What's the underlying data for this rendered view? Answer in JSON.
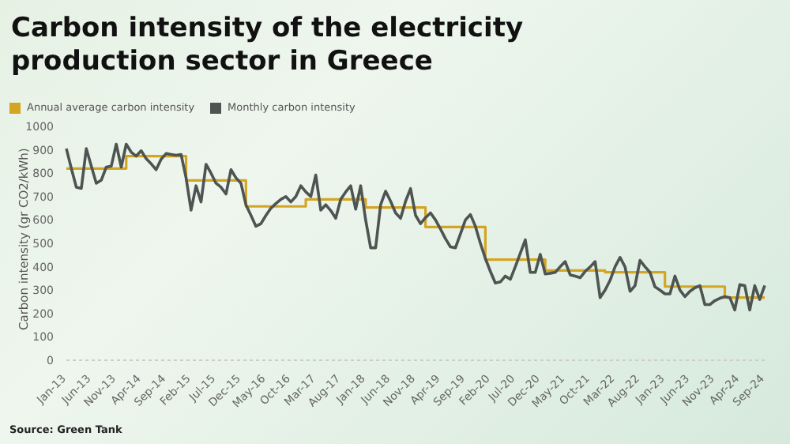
{
  "chart_data": {
    "type": "line",
    "title": "Carbon intensity of the electricity production sector in Greece",
    "ylabel": "Carbon intensity (gr CO2/kWh)",
    "annotations": [
      "Source: Green Tank"
    ],
    "categories": [
      "Jan-13",
      null,
      null,
      null,
      null,
      "Jun-13",
      null,
      null,
      null,
      null,
      "Nov-13",
      null,
      null,
      null,
      null,
      "Apr-14",
      null,
      null,
      null,
      null,
      "Sep-14",
      null,
      null,
      null,
      null,
      "Feb-15",
      null,
      null,
      null,
      null,
      "Jul-15",
      null,
      null,
      null,
      null,
      "Dec-15",
      null,
      null,
      null,
      null,
      "May-16",
      null,
      null,
      null,
      null,
      "Oct-16",
      null,
      null,
      null,
      null,
      "Mar-17",
      null,
      null,
      null,
      null,
      "Aug-17",
      null,
      null,
      null,
      null,
      "Jan-18",
      null,
      null,
      null,
      null,
      "Jun-18",
      null,
      null,
      null,
      null,
      "Nov-18",
      null,
      null,
      null,
      null,
      "Apr-19",
      null,
      null,
      null,
      null,
      "Sep-19",
      null,
      null,
      null,
      null,
      "Feb-20",
      null,
      null,
      null,
      null,
      "Jul-20",
      null,
      null,
      null,
      null,
      "Dec-20",
      null,
      null,
      null,
      null,
      "May-21",
      null,
      null,
      null,
      null,
      "Oct-21",
      null,
      null,
      null,
      null,
      "Mar-22",
      null,
      null,
      null,
      null,
      "Aug-22",
      null,
      null,
      null,
      null,
      "Jan-23",
      null,
      null,
      null,
      null,
      "Jun-23",
      null,
      null,
      null,
      null,
      "Nov-23",
      null,
      null,
      null,
      null,
      "Apr-24",
      null,
      null,
      null,
      null,
      "Sep-24"
    ],
    "series": [
      {
        "name": "Annual average carbon intensity",
        "type": "step",
        "color": "#d4a520",
        "values": [
          820,
          820,
          820,
          820,
          820,
          820,
          820,
          820,
          820,
          820,
          820,
          820,
          873,
          873,
          873,
          873,
          873,
          873,
          873,
          873,
          873,
          873,
          873,
          873,
          769,
          769,
          769,
          769,
          769,
          769,
          769,
          769,
          769,
          769,
          769,
          769,
          658,
          658,
          658,
          658,
          658,
          658,
          658,
          658,
          658,
          658,
          658,
          658,
          688,
          688,
          688,
          688,
          688,
          688,
          688,
          688,
          688,
          688,
          688,
          688,
          653,
          653,
          653,
          653,
          653,
          653,
          653,
          653,
          653,
          653,
          653,
          653,
          570,
          570,
          570,
          570,
          570,
          570,
          570,
          570,
          570,
          570,
          570,
          570,
          430,
          430,
          430,
          430,
          430,
          430,
          430,
          430,
          430,
          430,
          430,
          430,
          384,
          384,
          384,
          384,
          384,
          384,
          384,
          384,
          384,
          384,
          384,
          384,
          376,
          376,
          376,
          376,
          376,
          376,
          376,
          376,
          376,
          376,
          376,
          376,
          315,
          315,
          315,
          315,
          315,
          315,
          315,
          315,
          315,
          315,
          315,
          315,
          268,
          268,
          268,
          268,
          268,
          268,
          268,
          268,
          268
        ]
      },
      {
        "name": "Monthly carbon intensity",
        "type": "line",
        "color": "#4d5452",
        "values": [
          905,
          820,
          740,
          735,
          905,
          830,
          757,
          770,
          826,
          830,
          924,
          826,
          924,
          890,
          873,
          896,
          862,
          840,
          815,
          860,
          884,
          880,
          877,
          880,
          780,
          642,
          746,
          677,
          838,
          800,
          757,
          740,
          711,
          815,
          780,
          757,
          665,
          620,
          573,
          584,
          619,
          650,
          670,
          688,
          700,
          677,
          700,
          746,
          720,
          700,
          792,
          642,
          665,
          640,
          607,
          688,
          720,
          746,
          646,
          746,
          600,
          481,
          481,
          665,
          723,
          680,
          630,
          607,
          680,
          734,
          620,
          584,
          610,
          630,
          600,
          561,
          520,
          485,
          481,
          540,
          600,
          623,
          573,
          500,
          435,
          380,
          330,
          335,
          360,
          346,
          400,
          457,
          515,
          376,
          376,
          453,
          369,
          372,
          376,
          400,
          422,
          365,
          360,
          353,
          380,
          399,
          422,
          268,
          300,
          342,
          400,
          440,
          399,
          295,
          319,
          427,
          400,
          376,
          314,
          300,
          284,
          284,
          360,
          300,
          272,
          295,
          310,
          319,
          238,
          238,
          255,
          265,
          272,
          268,
          215,
          323,
          319,
          215,
          319,
          260,
          320
        ]
      }
    ],
    "ylim": [
      0,
      1000
    ],
    "yticks": [
      0,
      100,
      200,
      300,
      400,
      500,
      600,
      700,
      800,
      900,
      1000
    ],
    "grid": false,
    "legend": "top left",
    "marker": "none",
    "line_style": "solid"
  }
}
